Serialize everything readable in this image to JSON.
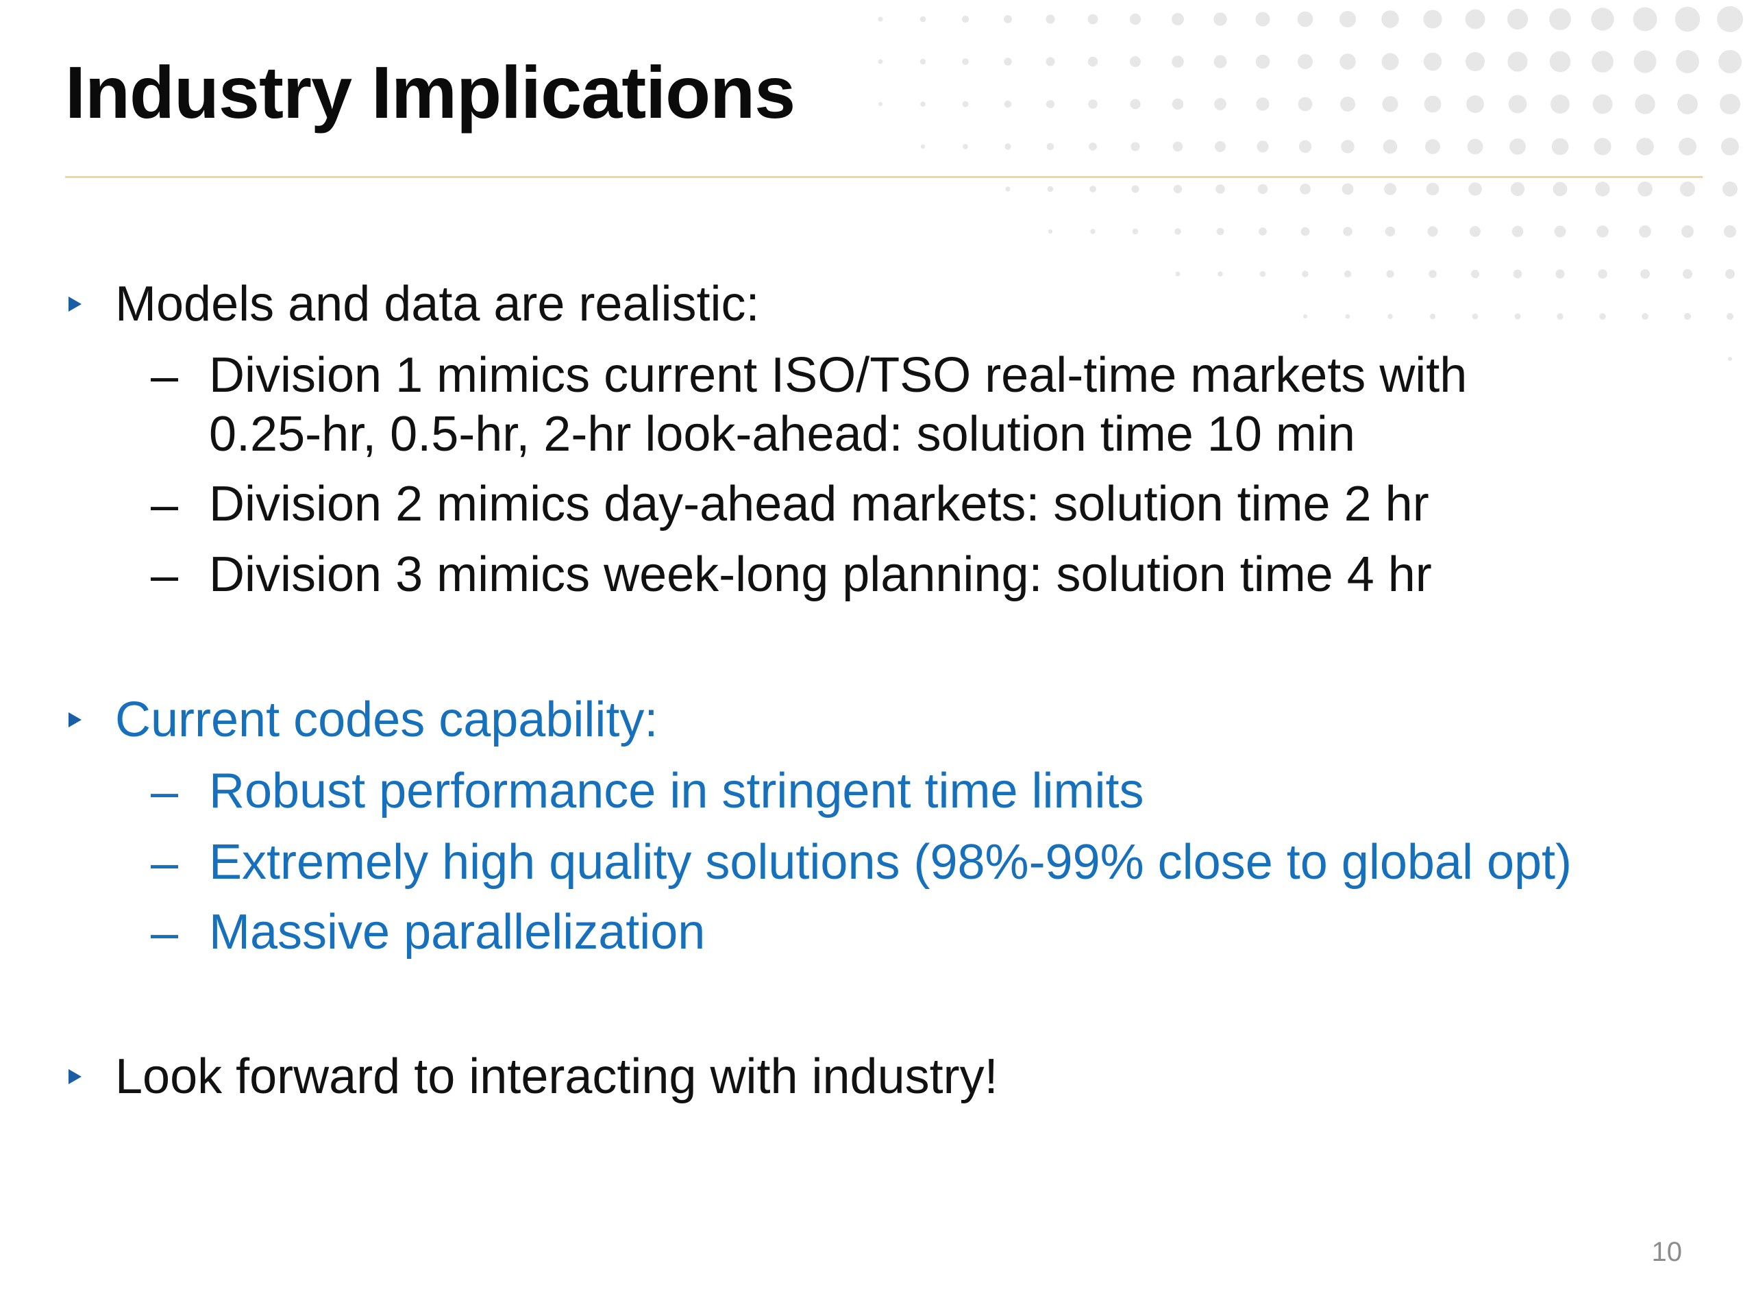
{
  "slide": {
    "title": "Industry Implications",
    "page_number": "10",
    "colors": {
      "accent_blue": "#1670bc",
      "rule": "#f0d69a",
      "dots": "#e7e7e7",
      "text": "#111111"
    }
  },
  "bullets": [
    {
      "text": "Models and data are realistic:",
      "color": "black",
      "subs": [
        {
          "lines": [
            "Division 1 mimics current ISO/TSO real-time markets with",
            "0.25-hr, 0.5-hr, 2-hr look-ahead: solution time 10 min"
          ]
        },
        {
          "lines": [
            "Division 2 mimics day-ahead markets: solution time 2 hr"
          ]
        },
        {
          "lines": [
            "Division 3 mimics week-long planning: solution time 4 hr"
          ]
        }
      ]
    },
    {
      "text": "Current codes capability:",
      "color": "blue",
      "subs": [
        {
          "lines": [
            "Robust performance in stringent time limits"
          ]
        },
        {
          "lines": [
            "Extremely high quality solutions (98%-99% close to global opt)"
          ]
        },
        {
          "lines": [
            "Massive parallelization"
          ]
        }
      ]
    },
    {
      "text": "Look forward to interacting with industry!",
      "color": "black",
      "subs": []
    }
  ],
  "dash_glyph": "–"
}
